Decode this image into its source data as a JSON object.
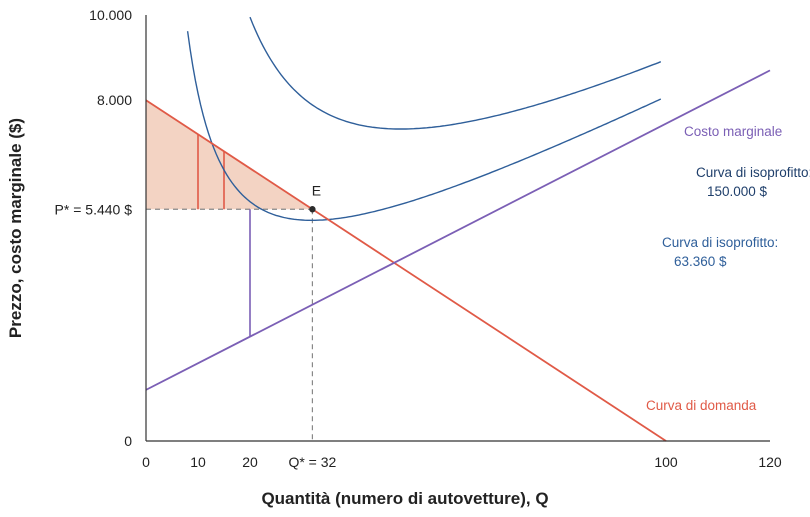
{
  "chart_data": {
    "type": "line",
    "xlabel": "Quantità (numero di autovetture), Q",
    "ylabel": "Prezzo, costo marginale ($)",
    "xlim": [
      0,
      120
    ],
    "ylim": [
      0,
      10000
    ],
    "x_ticks": [
      {
        "value": 0,
        "label": "0"
      },
      {
        "value": 10,
        "label": "10"
      },
      {
        "value": 20,
        "label": "20"
      },
      {
        "value": 32,
        "label": "Q* = 32"
      },
      {
        "value": 100,
        "label": "100"
      },
      {
        "value": 120,
        "label": "120"
      }
    ],
    "y_ticks": [
      {
        "value": 0,
        "label": "0"
      },
      {
        "value": 5440,
        "label": "P* = 5.440 $"
      },
      {
        "value": 8000,
        "label": "8.000"
      },
      {
        "value": 10000,
        "label": "10.000"
      }
    ],
    "grid": false,
    "colors": {
      "demand": "#e05a47",
      "marginal_cost": "#7b5fb5",
      "isoprofit": "#2f5f9a",
      "surplus_fill": "#f3d3c3",
      "guide": "#888888"
    },
    "series": [
      {
        "name": "Curva di domanda",
        "kind": "line",
        "x": [
          0,
          100
        ],
        "y": [
          8000,
          0
        ]
      },
      {
        "name": "Costo marginale",
        "kind": "line",
        "x": [
          0,
          120
        ],
        "y": [
          1200,
          8700
        ]
      },
      {
        "name": "Curva di isoprofitto: 63.360 $",
        "kind": "isoprofit",
        "profit": 63360
      },
      {
        "name": "Curva di isoprofitto: 150.000 $",
        "kind": "isoprofit",
        "profit": 150000
      }
    ],
    "point": {
      "label": "E",
      "x": 32,
      "y": 5440
    },
    "consumer_surplus_segments": [
      {
        "x": 10,
        "from": 5440,
        "to": 7200
      },
      {
        "x": 15,
        "from": 5440,
        "to": 6800
      }
    ],
    "marginal_cost_segment": {
      "x": 20,
      "from": 2450,
      "to": 5440
    },
    "annotations": {
      "marginal_cost": "Costo marginale",
      "isoprofit_high_line1": "Curva di isoprofitto:",
      "isoprofit_high_line2": "150.000 $",
      "isoprofit_low_line1": "Curva di isoprofitto:",
      "isoprofit_low_line2": "63.360 $",
      "demand": "Curva di domanda"
    }
  }
}
